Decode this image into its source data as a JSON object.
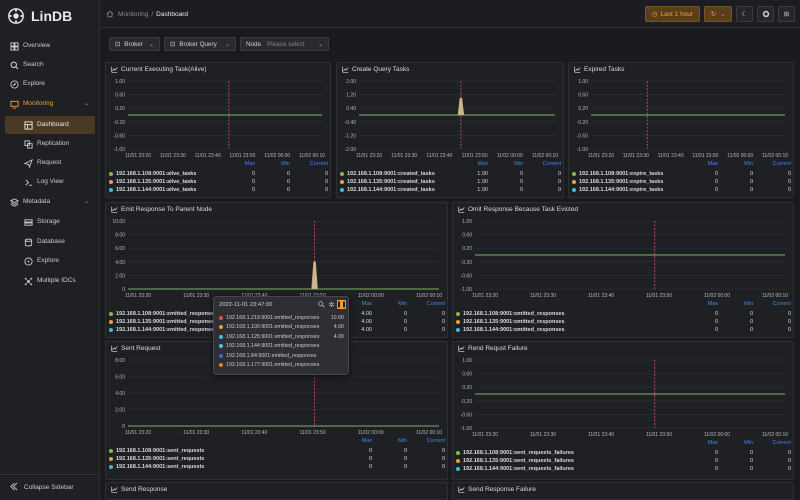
{
  "app": {
    "name": "LinDB"
  },
  "sidebar": {
    "items": [
      {
        "label": "Overview",
        "icon": "overview-icon"
      },
      {
        "label": "Search",
        "icon": "search-icon"
      },
      {
        "label": "Explore",
        "icon": "compass-icon"
      },
      {
        "label": "Monitoring",
        "icon": "monitor-icon"
      },
      {
        "label": "Dashboard",
        "icon": "dashboard-icon"
      },
      {
        "label": "Replication",
        "icon": "replication-icon"
      },
      {
        "label": "Request",
        "icon": "send-icon"
      },
      {
        "label": "Log View",
        "icon": "log-icon"
      },
      {
        "label": "Metadata",
        "icon": "metadata-icon"
      },
      {
        "label": "Storage",
        "icon": "storage-icon"
      },
      {
        "label": "Database",
        "icon": "database-icon"
      },
      {
        "label": "Explore",
        "icon": "explore-icon"
      },
      {
        "label": "Multiple IDCs",
        "icon": "cluster-icon"
      }
    ],
    "collapse_label": "Collapse Sidebar"
  },
  "header": {
    "breadcrumb_parent": "Monitoring",
    "breadcrumb_sep": "/",
    "breadcrumb_current": "Dashboard",
    "time_range": "Last 1 hour"
  },
  "filters": {
    "broker_label": "Broker",
    "broker_query_label": "Broker Query",
    "node_label": "Node",
    "node_placeholder": "Please select"
  },
  "legend_head": {
    "max": "Max",
    "min": "Min",
    "current": "Current"
  },
  "colors": {
    "accent": "#f59e2e",
    "series": [
      "#87b94b",
      "#e6a23c",
      "#3bbdd6"
    ],
    "line": "#7bb26a",
    "marker": "#d9534f"
  },
  "panels": [
    {
      "title": "Current Executing Task(Alive)",
      "y_ticks": [
        "1.00",
        "0.60",
        "0.20",
        "-0.20",
        "-0.60",
        "-1.00"
      ],
      "x_ticks": [
        "11/01 23:20",
        "11/01 23:30",
        "11/01 23:40",
        "11/01 23:50",
        "11/02 00:00",
        "11/02 00:10"
      ],
      "series": [
        {
          "name": "192.168.1.108:9001:alive_tasks",
          "max": "0",
          "min": "0",
          "current": "0"
        },
        {
          "name": "192.168.1.135:9001:alive_tasks",
          "max": "0",
          "min": "0",
          "current": "0"
        },
        {
          "name": "192.168.1.144:9001:alive_tasks",
          "max": "0",
          "min": "0",
          "current": "0"
        }
      ]
    },
    {
      "title": "Create Query Tasks",
      "y_ticks": [
        "2.00",
        "1.20",
        "0.40",
        "-0.40",
        "-1.20",
        "-2.00"
      ],
      "x_ticks": [
        "11/01 23:20",
        "11/01 23:30",
        "11/01 23:40",
        "11/01 23:50",
        "11/02 00:00",
        "11/02 00:10"
      ],
      "series": [
        {
          "name": "192.168.1.108:9001:created_tasks",
          "max": "1.00",
          "min": "0",
          "current": "0"
        },
        {
          "name": "192.168.1.135:9001:created_tasks",
          "max": "1.00",
          "min": "0",
          "current": "0"
        },
        {
          "name": "192.168.1.144:9001:created_tasks",
          "max": "1.00",
          "min": "0",
          "current": "0"
        }
      ]
    },
    {
      "title": "Expired Tasks",
      "y_ticks": [
        "1.00",
        "0.60",
        "0.20",
        "-0.20",
        "-0.60",
        "-1.00"
      ],
      "x_ticks": [
        "11/01 23:20",
        "11/01 23:30",
        "11/01 23:40",
        "11/01 23:50",
        "11/02 00:00",
        "11/02 00:10"
      ],
      "series": [
        {
          "name": "192.168.1.108:9001:expire_tasks",
          "max": "0",
          "min": "0",
          "current": "0"
        },
        {
          "name": "192.168.1.135:9001:expire_tasks",
          "max": "0",
          "min": "0",
          "current": "0"
        },
        {
          "name": "192.168.1.144:9001:expire_tasks",
          "max": "0",
          "min": "0",
          "current": "0"
        }
      ]
    },
    {
      "title": "Emit Response To Parent Node",
      "y_ticks": [
        "10.00",
        "8.00",
        "6.00",
        "4.00",
        "2.00",
        "0"
      ],
      "x_ticks": [
        "11/01 23:20",
        "11/01 23:30",
        "11/01 23:40",
        "11/01 23:50",
        "11/02 00:00",
        "11/02 00:10"
      ],
      "series": [
        {
          "name": "192.168.1.108:9001:emitted_responses",
          "max": "4.00",
          "min": "0",
          "current": "0"
        },
        {
          "name": "192.168.1.135:9001:emitted_responses",
          "max": "4.00",
          "min": "0",
          "current": "0"
        },
        {
          "name": "192.168.1.144:9001:emitted_responses",
          "max": "4.00",
          "min": "0",
          "current": "0"
        }
      ]
    },
    {
      "title": "Omit Response Because Task Evicted",
      "y_ticks": [
        "1.00",
        "0.60",
        "0.20",
        "-0.20",
        "-0.60",
        "-1.00"
      ],
      "x_ticks": [
        "11/01 23:20",
        "11/01 23:30",
        "11/01 23:40",
        "11/01 23:50",
        "11/02 00:00",
        "11/02 00:10"
      ],
      "series": [
        {
          "name": "192.168.1.108:9001:omitted_responses",
          "max": "0",
          "min": "0",
          "current": "0"
        },
        {
          "name": "192.168.1.135:9001:omitted_responses",
          "max": "0",
          "min": "0",
          "current": "0"
        },
        {
          "name": "192.168.1.144:9001:omitted_responses",
          "max": "0",
          "min": "0",
          "current": "0"
        }
      ]
    },
    {
      "title": "Sent Request",
      "y_ticks": [
        "8.00",
        "6.00",
        "4.00",
        "2.00",
        "0"
      ],
      "x_ticks": [
        "11/01 23:20",
        "11/01 23:30",
        "11/01 23:40",
        "11/01 23:50",
        "11/02 00:00",
        "11/02 00:10"
      ],
      "series": [
        {
          "name": "192.168.1.108:9001:sent_requests",
          "max": "0",
          "min": "0",
          "current": "0"
        },
        {
          "name": "192.168.1.135:9001:sent_requests",
          "max": "0",
          "min": "0",
          "current": "0"
        },
        {
          "name": "192.168.1.144:9001:sent_requests",
          "max": "0",
          "min": "0",
          "current": "0"
        }
      ]
    },
    {
      "title": "Rend Requst Failure",
      "y_ticks": [
        "1.00",
        "0.60",
        "0.20",
        "-0.20",
        "-0.60",
        "-1.00"
      ],
      "x_ticks": [
        "11/01 23:20",
        "11/01 23:30",
        "11/01 23:40",
        "11/01 23:50",
        "11/02 00:00",
        "11/02 00:10"
      ],
      "series": [
        {
          "name": "192.168.1.108:9001:sent_requests_failures",
          "max": "0",
          "min": "0",
          "current": "0"
        },
        {
          "name": "192.168.1.135:9001:sent_requests_failures",
          "max": "0",
          "min": "0",
          "current": "0"
        },
        {
          "name": "192.168.1.144:9001:sent_requests_failures",
          "max": "0",
          "min": "0",
          "current": "0"
        }
      ]
    },
    {
      "title": "Send Response"
    },
    {
      "title": "Send Response Failure"
    }
  ],
  "tooltip": {
    "time": "2022-11-01 23:47:00",
    "rows": [
      {
        "name": "192.168.1.219:9001:emitted_responses",
        "value": "10.00",
        "color": "#d9534f"
      },
      {
        "name": "192.168.1.100:9001:emitted_responses",
        "value": "4.00",
        "color": "#e6a23c"
      },
      {
        "name": "192.168.1.125:9001:emitted_responses",
        "value": "4.00",
        "color": "#3bbdd6"
      },
      {
        "name": "192.168.1.144:9001:emitted_responses",
        "value": "",
        "color": "#5bc0de"
      },
      {
        "name": "192.168.1.84:9001:emitted_responses",
        "value": "",
        "color": "#3d6ad6"
      },
      {
        "name": "192.168.1.177:9001:emitted_responses",
        "value": "",
        "color": "#e67e22"
      }
    ]
  }
}
